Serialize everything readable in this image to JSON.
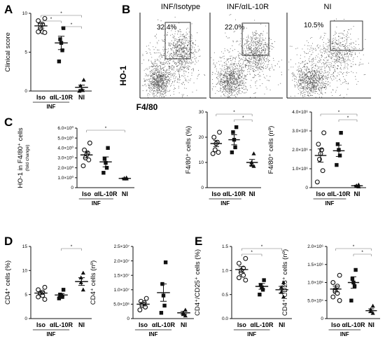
{
  "panel_labels": [
    "A",
    "B",
    "C",
    "D",
    "E"
  ],
  "flow": {
    "titles": [
      "INF/Isotype",
      "INF/αIL-10R",
      "NI"
    ],
    "percentages": [
      "32.4%",
      "22.0%",
      "10.5%"
    ],
    "x_axis_label": "F4/80",
    "y_axis_label": "HO-1"
  },
  "colors": {
    "ink": "#111111",
    "gate": "#333333",
    "dots": "#222222"
  },
  "chart_data": [
    {
      "panel": "A",
      "type": "scatter",
      "ylabel": "Clinical score",
      "categories": [
        "Iso",
        "αIL-10R",
        "NI"
      ],
      "group_label": "INF",
      "yticks": [
        "0",
        "5",
        "10"
      ],
      "ylim": [
        0,
        10.5
      ],
      "points": [
        [
          9.8,
          9.5,
          9.0,
          9.0,
          8.5,
          8.0,
          8.0,
          7.9
        ],
        [
          8.5,
          7.0,
          6.5,
          5.5,
          4.0
        ],
        [
          1.5,
          0.7,
          0.2,
          0.1,
          0.0
        ]
      ],
      "mean": [
        8.8,
        6.5,
        0.5
      ],
      "sem": [
        0.3,
        0.9,
        0.3
      ],
      "sig_brackets": [
        [
          0,
          2,
          "*"
        ],
        [
          0,
          1,
          "*"
        ],
        [
          1,
          2,
          "*"
        ]
      ]
    },
    {
      "panel": "C1",
      "type": "scatter",
      "ylabel": "HO-1 in F4/80⁺ cells",
      "ylabel2": "(fold change)",
      "categories": [
        "Iso",
        "αIL-10R",
        "NI"
      ],
      "group_label": "INF",
      "yticks": [
        "0",
        "1.0×10⁰",
        "2.0×10⁰",
        "3.0×10⁰",
        "4.0×10⁰",
        "5.0×10⁰",
        "6.0×10⁰"
      ],
      "ylim": [
        0,
        6
      ],
      "points": [
        [
          4.5,
          3.8,
          3.5,
          3.3,
          3.0,
          2.8,
          2.2
        ],
        [
          4.0,
          2.9,
          2.5,
          2.0,
          1.5
        ],
        [
          1.0,
          0.95,
          0.9,
          0.9
        ]
      ],
      "mean": [
        3.3,
        2.6,
        0.93
      ],
      "sem": [
        0.3,
        0.5,
        0.05
      ],
      "sig_brackets": [
        [
          0,
          2,
          "*"
        ]
      ]
    },
    {
      "panel": "C2",
      "type": "scatter",
      "ylabel": "F4/80⁺ cells (%)",
      "categories": [
        "Iso",
        "αIL-10R",
        "NI"
      ],
      "group_label": "INF",
      "yticks": [
        "0",
        "10",
        "20",
        "30"
      ],
      "ylim": [
        0,
        30
      ],
      "points": [
        [
          22.0,
          20.0,
          18.0,
          17.5,
          15.0,
          14.0,
          13.5
        ],
        [
          24.0,
          22.0,
          19.0,
          16.0,
          14.0
        ],
        [
          13.5,
          10.0,
          9.0,
          8.5
        ]
      ],
      "mean": [
        17.5,
        19.0,
        10.0
      ],
      "sem": [
        1.2,
        2.0,
        1.2
      ],
      "sig_brackets": [
        [
          0,
          2,
          "*"
        ],
        [
          1,
          2,
          "*"
        ]
      ]
    },
    {
      "panel": "C3",
      "type": "scatter",
      "ylabel": "F4/80⁺ cells (nº)",
      "categories": [
        "Iso",
        "αIL-10R",
        "NI"
      ],
      "group_label": "INF",
      "yticks": [
        "0",
        "1.0×10⁶",
        "2.0×10⁶",
        "3.0×10⁶",
        "4.0×10⁶"
      ],
      "ylim": [
        0,
        4
      ],
      "points": [
        [
          2.9,
          2.3,
          2.0,
          1.8,
          1.5,
          0.9,
          0.3
        ],
        [
          2.9,
          2.3,
          2.0,
          1.7,
          1.2
        ],
        [
          0.15,
          0.1,
          0.1,
          0.05
        ]
      ],
      "mean": [
        1.7,
        1.95,
        0.1
      ],
      "sem": [
        0.35,
        0.3,
        0.03
      ],
      "sig_brackets": [
        [
          0,
          2,
          "*"
        ],
        [
          1,
          2,
          "*"
        ]
      ]
    },
    {
      "panel": "D1",
      "type": "scatter",
      "ylabel": "CD4⁺ cells (%)",
      "categories": [
        "Iso",
        "αIL-10R",
        "NI"
      ],
      "group_label": "INF",
      "yticks": [
        "0",
        "5",
        "10",
        "15"
      ],
      "ylim": [
        0,
        15
      ],
      "points": [
        [
          6.5,
          6.0,
          5.5,
          5.3,
          5.0,
          4.8,
          4.5,
          4.0
        ],
        [
          6.0,
          5.0,
          4.8,
          4.5,
          4.2
        ],
        [
          9.5,
          8.5,
          7.5,
          6.0
        ]
      ],
      "mean": [
        5.3,
        4.9,
        7.7
      ],
      "sem": [
        0.3,
        0.3,
        0.8
      ],
      "sig_brackets": [
        [
          1,
          2,
          "*"
        ]
      ]
    },
    {
      "panel": "D2",
      "type": "scatter",
      "ylabel": "CD4⁺ cells (nº)",
      "categories": [
        "Iso",
        "αIL-10R",
        "NI"
      ],
      "group_label": "INF",
      "yticks": [
        "0",
        "5.0×10⁶",
        "1.0×10⁷",
        "1.5×10⁷",
        "2.0×10⁷",
        "2.5×10⁷"
      ],
      "ylim": [
        0,
        25
      ],
      "points": [
        [
          7.0,
          6.0,
          5.5,
          5.0,
          4.5,
          4.0,
          3.0
        ],
        [
          19.5,
          12.0,
          8.0,
          4.5,
          2.0
        ],
        [
          3.0,
          2.0,
          1.5,
          1.0
        ]
      ],
      "mean": [
        5.0,
        9.0,
        2.0
      ],
      "sem": [
        0.6,
        3.0,
        0.5
      ],
      "sig_brackets": []
    },
    {
      "panel": "E1",
      "type": "scatter",
      "ylabel": "CD4⁺/CD25⁺ cells (%)",
      "categories": [
        "Iso",
        "αIL-10R",
        "NI"
      ],
      "group_label": "INF",
      "yticks": [
        "0.0",
        "0.5",
        "1.0",
        "1.5"
      ],
      "ylim": [
        0,
        1.5
      ],
      "points": [
        [
          1.25,
          1.15,
          1.05,
          1.0,
          0.95,
          0.9,
          0.85,
          0.8
        ],
        [
          0.8,
          0.7,
          0.65,
          0.6,
          0.5
        ],
        [
          0.75,
          0.65,
          0.55,
          0.45
        ]
      ],
      "mean": [
        1.02,
        0.67,
        0.6
      ],
      "sem": [
        0.06,
        0.06,
        0.07
      ],
      "sig_brackets": [
        [
          0,
          2,
          "*"
        ],
        [
          0,
          1,
          "*"
        ]
      ]
    },
    {
      "panel": "E2",
      "type": "scatter",
      "ylabel": "CD4⁺/CD25⁺ cells (nº)",
      "categories": [
        "Iso",
        "αIL-10R",
        "NI"
      ],
      "group_label": "INF",
      "yticks": [
        "0",
        "5.0×10⁵",
        "1.0×10⁶",
        "1.5×10⁶",
        "2.0×10⁶"
      ],
      "ylim": [
        0,
        2
      ],
      "points": [
        [
          1.2,
          1.0,
          0.9,
          0.8,
          0.75,
          0.7,
          0.6,
          0.5
        ],
        [
          1.35,
          1.1,
          1.0,
          0.9,
          0.5
        ],
        [
          0.35,
          0.25,
          0.2,
          0.15
        ]
      ],
      "mean": [
        0.82,
        1.0,
        0.22
      ],
      "sem": [
        0.08,
        0.16,
        0.05
      ],
      "sig_brackets": [
        [
          0,
          2,
          "*"
        ],
        [
          1,
          2,
          "*"
        ]
      ]
    }
  ]
}
